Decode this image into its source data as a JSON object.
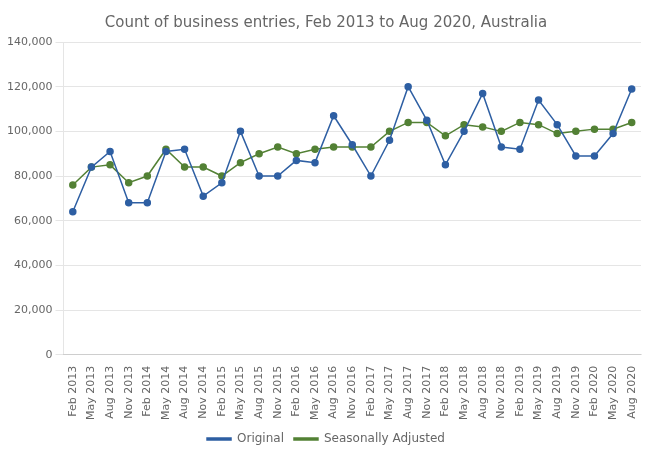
{
  "chart_data": {
    "type": "line",
    "title": "Count of business entries, Feb 2013 to Aug 2020, Australia",
    "categories": [
      "Feb 2013",
      "May 2013",
      "Aug 2013",
      "Nov 2013",
      "Feb 2014",
      "May 2014",
      "Aug 2014",
      "Nov 2014",
      "Feb 2015",
      "May 2015",
      "Aug 2015",
      "Nov 2015",
      "Feb 2016",
      "May 2016",
      "Aug 2016",
      "Nov 2016",
      "Feb 2017",
      "May 2017",
      "Aug 2017",
      "Nov 2017",
      "Feb 2018",
      "May 2018",
      "Aug 2018",
      "Nov 2018",
      "Feb 2019",
      "May 2019",
      "Aug 2019",
      "Nov 2019",
      "Feb 2020",
      "May 2020",
      "Aug 2020"
    ],
    "series": [
      {
        "name": "Original",
        "color": "#2E5FA3",
        "marker": "circle",
        "values": [
          64000,
          84000,
          91000,
          68000,
          68000,
          91000,
          92000,
          71000,
          77000,
          100000,
          80000,
          80000,
          87000,
          86000,
          107000,
          94000,
          80000,
          96000,
          120000,
          105000,
          85000,
          100000,
          117000,
          93000,
          92000,
          114000,
          103000,
          89000,
          89000,
          99000,
          119000
        ]
      },
      {
        "name": "Seasonally Adjusted",
        "color": "#538135",
        "marker": "circle",
        "values": [
          76000,
          84000,
          85000,
          77000,
          80000,
          92000,
          84000,
          84000,
          80000,
          86000,
          90000,
          93000,
          90000,
          92000,
          93000,
          93000,
          93000,
          100000,
          104000,
          104000,
          98000,
          103000,
          102000,
          100000,
          104000,
          103000,
          99000,
          100000,
          101000,
          101000,
          104000
        ]
      }
    ],
    "ylim": [
      0,
      140000
    ],
    "yticks": [
      0,
      {
        "value": 20000,
        "label": "20,000"
      },
      {
        "value": 40000,
        "label": "40,000"
      },
      {
        "value": 60000,
        "label": "60,000"
      },
      {
        "value": 80000,
        "label": "80,000"
      },
      {
        "value": 100000,
        "label": "100,000"
      },
      {
        "value": 120000,
        "label": "120,000"
      },
      {
        "value": 140000,
        "label": "140,000"
      }
    ],
    "grid": true,
    "legend": "bottom"
  }
}
